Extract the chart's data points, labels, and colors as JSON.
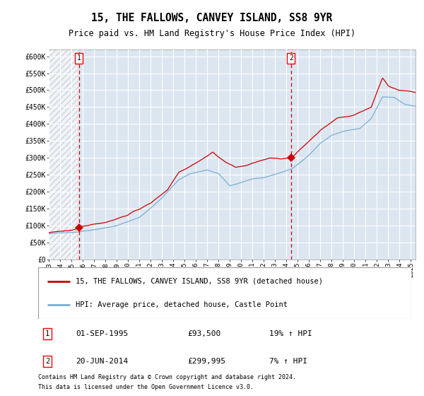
{
  "title": "15, THE FALLOWS, CANVEY ISLAND, SS8 9YR",
  "subtitle": "Price paid vs. HM Land Registry's House Price Index (HPI)",
  "ylim": [
    0,
    620000
  ],
  "yticks": [
    0,
    50000,
    100000,
    150000,
    200000,
    250000,
    300000,
    350000,
    400000,
    450000,
    500000,
    550000,
    600000
  ],
  "ytick_labels": [
    "£0",
    "£50K",
    "£100K",
    "£150K",
    "£200K",
    "£250K",
    "£300K",
    "£350K",
    "£400K",
    "£450K",
    "£500K",
    "£550K",
    "£600K"
  ],
  "x_start_year": 1993,
  "x_end_year": 2026,
  "sale1_year": 1995,
  "sale1_month": 9,
  "sale1_price": 93500,
  "sale2_year": 2014,
  "sale2_month": 6,
  "sale2_price": 299995,
  "legend_line1": "15, THE FALLOWS, CANVEY ISLAND, SS8 9YR (detached house)",
  "legend_line2": "HPI: Average price, detached house, Castle Point",
  "annotation1_date": "01-SEP-1995",
  "annotation1_price": "£93,500",
  "annotation1_hpi": "19% ↑ HPI",
  "annotation2_date": "20-JUN-2014",
  "annotation2_price": "£299,995",
  "annotation2_hpi": "7% ↑ HPI",
  "footer1": "Contains HM Land Registry data © Crown copyright and database right 2024.",
  "footer2": "This data is licensed under the Open Government Licence v3.0.",
  "bg_color": "#dce6f1",
  "grid_color": "#ffffff",
  "line_red": "#cc0000",
  "line_blue": "#7bafd4",
  "dot_color": "#cc0000",
  "vline_color": "#cc0000",
  "hatch_color": "#bbbbbb"
}
